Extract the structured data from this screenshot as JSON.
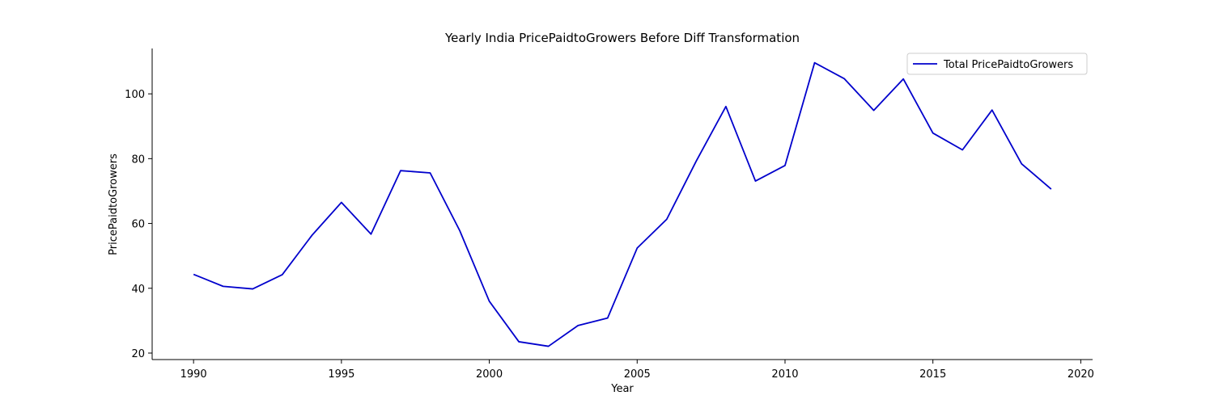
{
  "chart_data": {
    "type": "line",
    "title": "Yearly India PricePaidtoGrowers Before Diff Transformation",
    "xlabel": "Year",
    "ylabel": "PricePaidtoGrowers",
    "xlim": [
      1988.6,
      2020.4
    ],
    "ylim": [
      18,
      114
    ],
    "xticks": [
      1990,
      1995,
      2000,
      2005,
      2010,
      2015,
      2020
    ],
    "yticks": [
      20,
      40,
      60,
      80,
      100
    ],
    "grid": false,
    "legend_position": "top-right",
    "series_color": "#0000cc",
    "x": [
      1990,
      1991,
      1992,
      1993,
      1994,
      1995,
      1996,
      1997,
      1998,
      1999,
      2000,
      2001,
      2002,
      2003,
      2004,
      2005,
      2006,
      2007,
      2008,
      2009,
      2010,
      2011,
      2012,
      2013,
      2014,
      2015,
      2016,
      2017,
      2018,
      2019
    ],
    "series": [
      {
        "name": "Total PricePaidtoGrowers",
        "values": [
          44.3,
          40.6,
          39.8,
          44.2,
          56.3,
          66.5,
          56.7,
          76.3,
          75.6,
          57.8,
          36.0,
          23.5,
          22.1,
          28.5,
          30.8,
          52.4,
          61.3,
          79.3,
          96.1,
          73.1,
          77.9,
          109.6,
          104.7,
          94.9,
          104.6,
          87.9,
          82.7,
          95.0,
          78.4,
          70.6
        ]
      }
    ]
  }
}
